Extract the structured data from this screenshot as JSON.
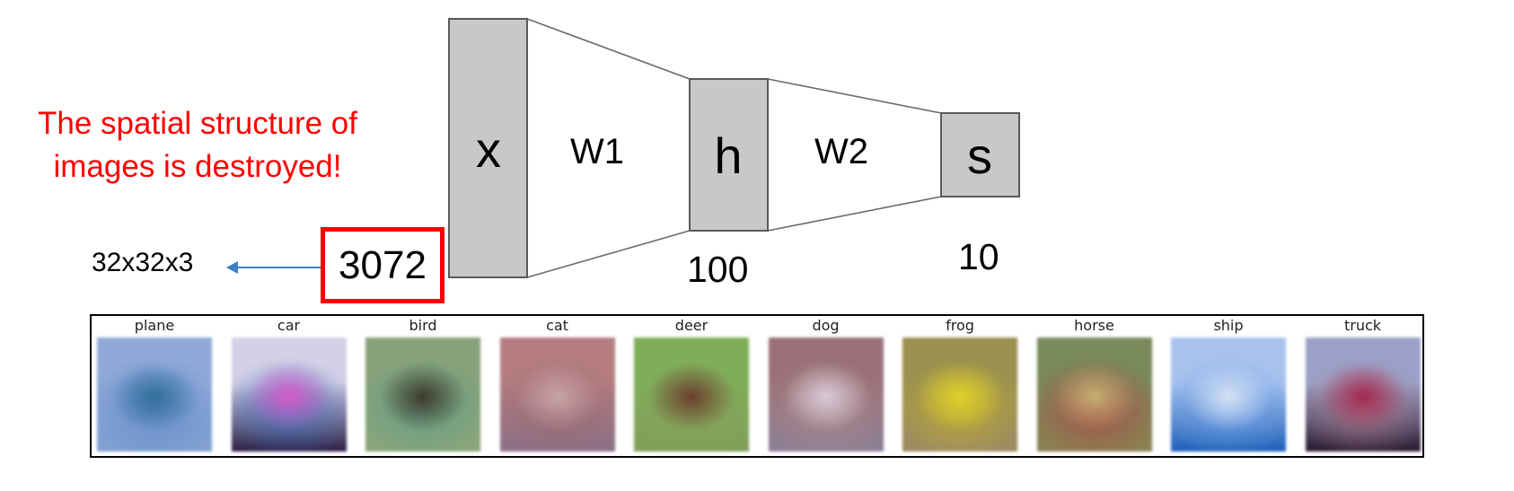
{
  "note": {
    "line1": "The spatial structure of",
    "line2": "images is destroyed!"
  },
  "input_dims": "32x32x3",
  "layers": {
    "x": {
      "label": "x",
      "size": "3072"
    },
    "w1": {
      "label": "W1"
    },
    "h": {
      "label": "h",
      "size": "100"
    },
    "w2": {
      "label": "W2"
    },
    "s": {
      "label": "s",
      "size": "10"
    }
  },
  "classes": [
    {
      "name": "plane",
      "colors": [
        "#8fa9d8",
        "#5f86c7",
        "#2f6f9a",
        "#7f9fd0"
      ]
    },
    {
      "name": "car",
      "colors": [
        "#d6d0e6",
        "#3b74c4",
        "#d65bc8",
        "#2b1f45"
      ]
    },
    {
      "name": "bird",
      "colors": [
        "#86a27a",
        "#5d9b8a",
        "#3f3b2a",
        "#8aa67a"
      ]
    },
    {
      "name": "cat",
      "colors": [
        "#b57d80",
        "#9a6a72",
        "#c9a4a8",
        "#8a6f86"
      ]
    },
    {
      "name": "deer",
      "colors": [
        "#7fae58",
        "#89a35b",
        "#6b3f2e",
        "#7f9e58"
      ]
    },
    {
      "name": "dog",
      "colors": [
        "#9a7078",
        "#b08a8a",
        "#d8cad8",
        "#8b8097"
      ]
    },
    {
      "name": "frog",
      "colors": [
        "#9a9050",
        "#c2b030",
        "#e0d02a",
        "#9e8a64"
      ]
    },
    {
      "name": "horse",
      "colors": [
        "#7a8a5a",
        "#b0404a",
        "#c6b070",
        "#8b8050"
      ]
    },
    {
      "name": "ship",
      "colors": [
        "#a8c2ee",
        "#6fa0e6",
        "#d6e2f4",
        "#1c5fb8"
      ]
    },
    {
      "name": "truck",
      "colors": [
        "#9aa0c8",
        "#b08090",
        "#a22a50",
        "#2a1a30"
      ]
    }
  ]
}
